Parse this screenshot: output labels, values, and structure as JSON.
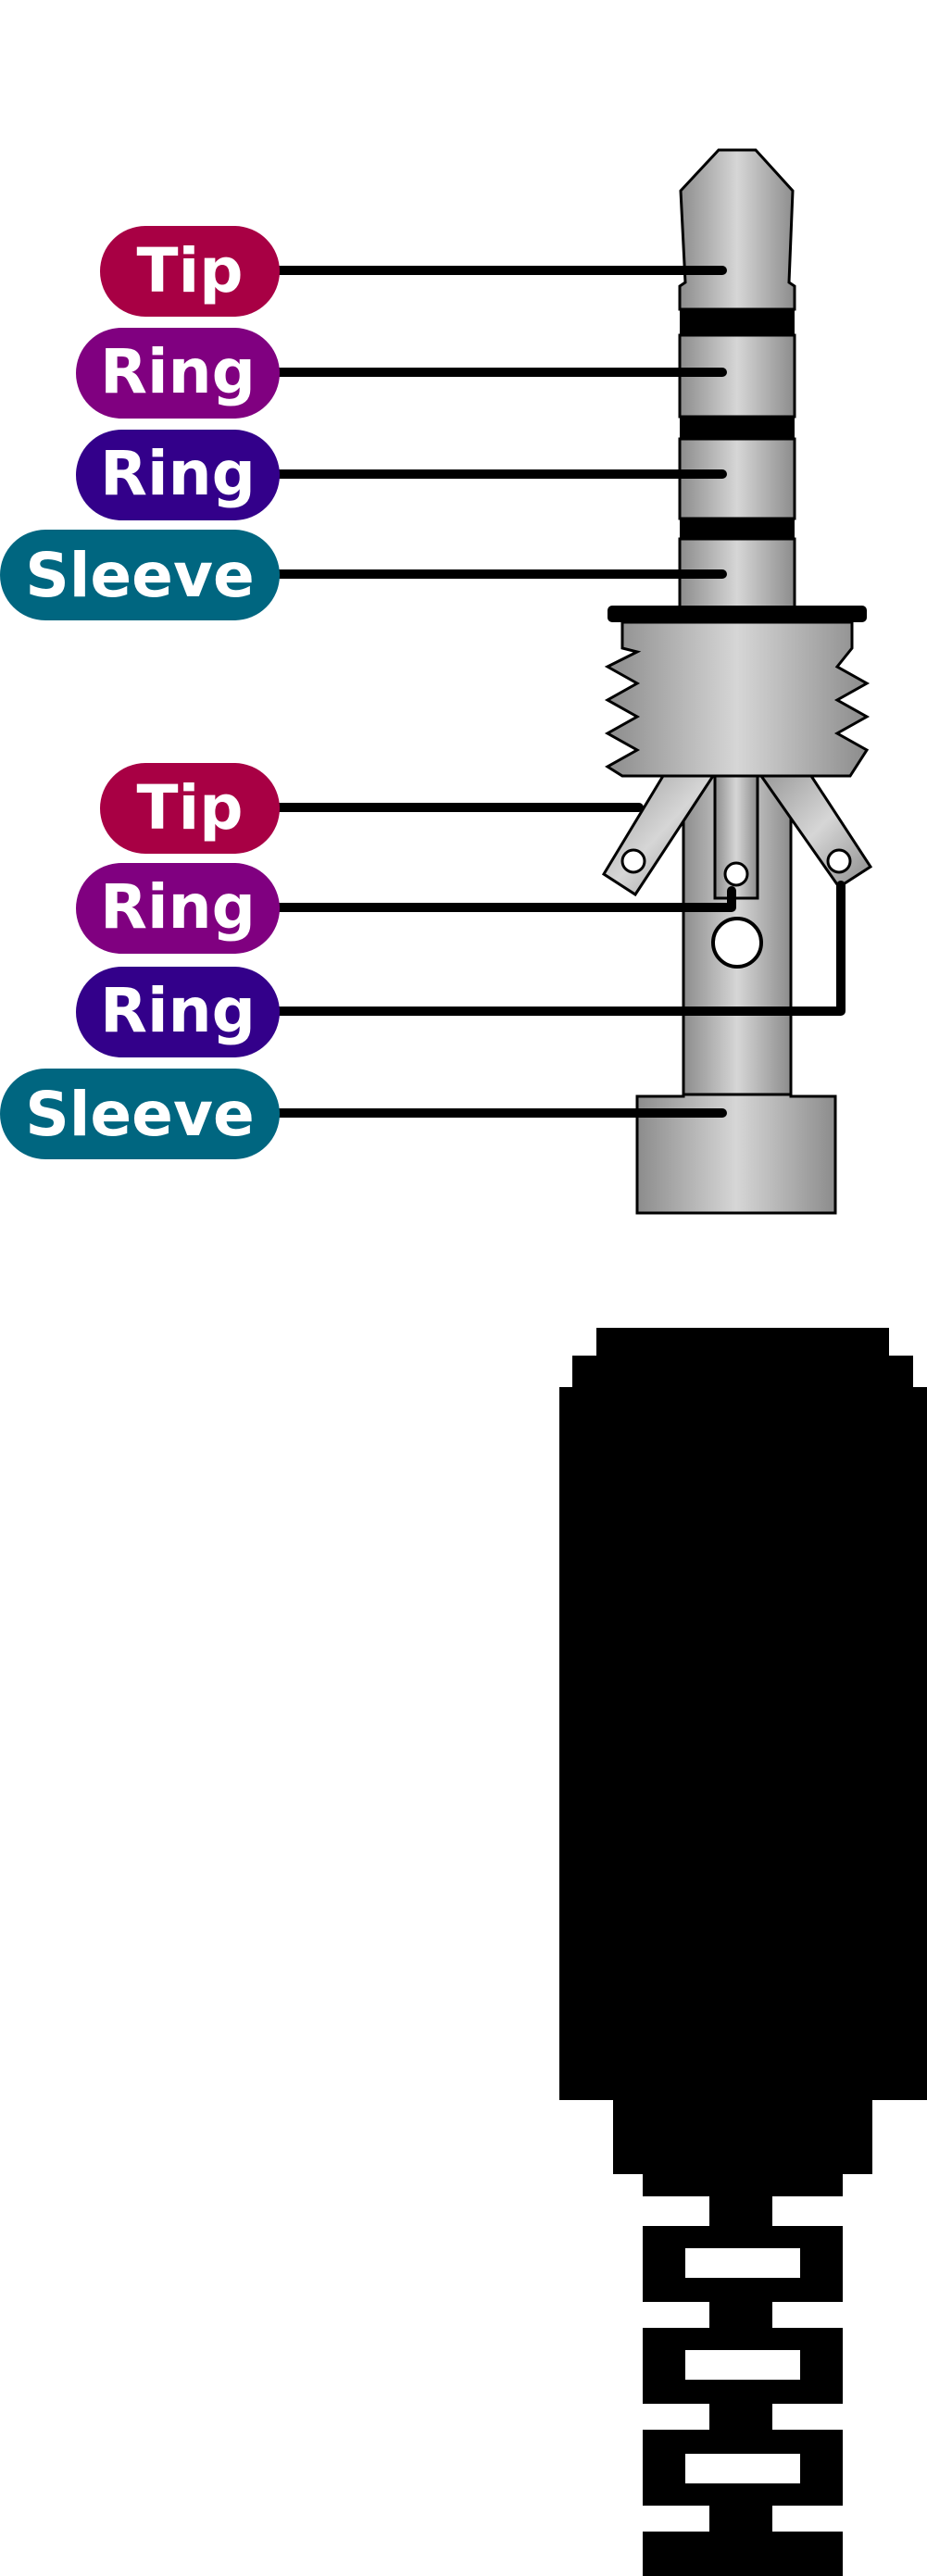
{
  "top_plug_labels": [
    {
      "text": "Tip",
      "color": "#a80044"
    },
    {
      "text": "Ring",
      "color": "#800080"
    },
    {
      "text": "Ring",
      "color": "#33008a"
    },
    {
      "text": "Sleeve",
      "color": "#006680"
    }
  ],
  "exploded_labels": [
    {
      "text": "Tip",
      "color": "#a80044"
    },
    {
      "text": "Ring",
      "color": "#800080"
    },
    {
      "text": "Ring",
      "color": "#33008a"
    },
    {
      "text": "Sleeve",
      "color": "#006680"
    }
  ],
  "colors": {
    "metal_light": "#d4d4d4",
    "metal_dark": "#8a8a8a",
    "outline": "#000000",
    "connector_body": "#000000"
  }
}
